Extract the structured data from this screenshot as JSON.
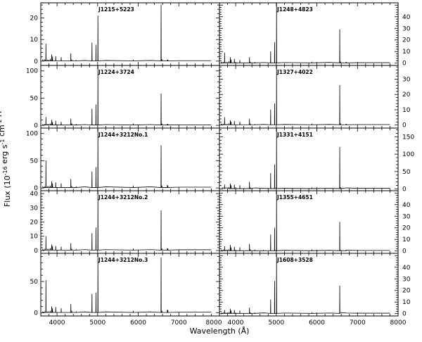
{
  "figure": {
    "xlabel": "Wavelength (Å)",
    "ylabel": "Flux (10^-16 erg s^-1 cm^-2 Å^-1)"
  },
  "chart_data": {
    "type": "line",
    "xlabel": "Wavelength (Å)",
    "ylabel": "Flux (10^-16 erg s^-1 cm^-2 Å^-1)",
    "grid": false,
    "panels": [
      {
        "name": "J1215+5223",
        "column": "left",
        "row": 0,
        "xlim": [
          3600,
          8000
        ],
        "ylim": [
          -2,
          27
        ],
        "yticks": [
          0,
          10,
          20
        ],
        "ytick_side": "left",
        "spectrum_x": [
          3650,
          3700,
          3727,
          3760,
          3800,
          3835,
          3869,
          3889,
          3968,
          4102,
          4340,
          4363,
          4471,
          4686,
          4861,
          4959,
          5007,
          5200,
          5876,
          6300,
          6563,
          6584,
          6717,
          6731,
          7000,
          7500,
          7800
        ],
        "spectrum_y": [
          0.8,
          0.7,
          8.0,
          0.6,
          0.5,
          1.0,
          3.0,
          2.0,
          2.2,
          1.8,
          3.5,
          0.6,
          0.4,
          0.3,
          8.5,
          7.5,
          21.0,
          0.3,
          0.6,
          0.3,
          26.0,
          0.8,
          0.6,
          0.5,
          0.2,
          0.2,
          0.2
        ]
      },
      {
        "name": "J1248+4823",
        "column": "right",
        "row": 0,
        "xlim": [
          3600,
          8000
        ],
        "ylim": [
          -2,
          52
        ],
        "yticks": [
          0,
          10,
          20,
          30,
          40
        ],
        "ytick_side": "right",
        "spectrum_x": [
          3650,
          3700,
          3727,
          3760,
          3800,
          3835,
          3869,
          3889,
          3968,
          4102,
          4340,
          4363,
          4471,
          4686,
          4861,
          4959,
          5007,
          5200,
          5876,
          6300,
          6563,
          6584,
          6717,
          6731,
          7000,
          7500,
          7800
        ],
        "spectrum_y": [
          1.0,
          0.9,
          9.0,
          0.8,
          0.7,
          1.5,
          5.0,
          3.0,
          3.5,
          2.5,
          5.0,
          1.0,
          0.8,
          0.5,
          10.0,
          18.0,
          53.0,
          0.5,
          1.0,
          0.6,
          29.0,
          1.2,
          0.8,
          0.7,
          0.4,
          0.4,
          0.4
        ]
      },
      {
        "name": "J1224+3724",
        "column": "left",
        "row": 1,
        "xlim": [
          3600,
          8000
        ],
        "ylim": [
          -5,
          110
        ],
        "yticks": [
          0,
          50,
          100
        ],
        "ytick_side": "left",
        "spectrum_x": [
          3650,
          3700,
          3727,
          3760,
          3800,
          3835,
          3869,
          3889,
          3968,
          4102,
          4340,
          4363,
          4471,
          4686,
          4861,
          4959,
          5007,
          5200,
          5876,
          6300,
          6563,
          6584,
          6717,
          6731,
          7000,
          7500,
          7800
        ],
        "spectrum_y": [
          2.0,
          2.0,
          15.0,
          2.0,
          2.0,
          3.0,
          10.0,
          6.0,
          8.0,
          6.0,
          12.0,
          3.0,
          2.0,
          1.5,
          30.0,
          38.0,
          110.0,
          1.5,
          3.0,
          1.5,
          58.0,
          3.0,
          2.5,
          2.0,
          1.0,
          1.0,
          1.0
        ]
      },
      {
        "name": "J1327+4022",
        "column": "right",
        "row": 1,
        "xlim": [
          3600,
          8000
        ],
        "ylim": [
          -2,
          39
        ],
        "yticks": [
          0,
          10,
          20,
          30
        ],
        "ytick_side": "right",
        "spectrum_x": [
          3650,
          3700,
          3727,
          3760,
          3800,
          3835,
          3869,
          3889,
          3968,
          4102,
          4340,
          4363,
          4471,
          4686,
          4861,
          4959,
          5007,
          5200,
          5876,
          6300,
          6563,
          6584,
          6717,
          6731,
          7000,
          7500,
          7800
        ],
        "spectrum_y": [
          0.8,
          0.7,
          5.0,
          0.6,
          0.5,
          1.0,
          3.0,
          2.0,
          2.5,
          2.0,
          4.0,
          0.8,
          0.5,
          0.4,
          10.0,
          14.0,
          40.0,
          0.4,
          0.8,
          0.4,
          26.0,
          0.9,
          0.6,
          0.5,
          0.3,
          0.3,
          0.3
        ]
      },
      {
        "name": "J1244+3212No.1",
        "column": "left",
        "row": 2,
        "xlim": [
          3600,
          8000
        ],
        "ylim": [
          -5,
          110
        ],
        "yticks": [
          0,
          50,
          100
        ],
        "ytick_side": "left",
        "spectrum_x": [
          3650,
          3700,
          3727,
          3760,
          3800,
          3835,
          3869,
          3889,
          3968,
          4102,
          4340,
          4363,
          4471,
          4686,
          4861,
          4959,
          5007,
          5200,
          5876,
          6300,
          6563,
          6584,
          6717,
          6731,
          7000,
          7500,
          7800
        ],
        "spectrum_y": [
          3.0,
          3.0,
          50.0,
          3.0,
          3.0,
          4.0,
          12.0,
          8.0,
          10.0,
          8.0,
          16.0,
          3.0,
          2.5,
          2.0,
          30.0,
          38.0,
          110.0,
          2.0,
          4.0,
          2.0,
          78.0,
          4.0,
          5.0,
          4.0,
          1.5,
          1.5,
          1.5
        ]
      },
      {
        "name": "J1331+4151",
        "column": "right",
        "row": 2,
        "xlim": [
          3600,
          8000
        ],
        "ylim": [
          -5,
          175
        ],
        "yticks": [
          0,
          50,
          100,
          150
        ],
        "ytick_side": "right",
        "spectrum_x": [
          3650,
          3700,
          3727,
          3760,
          3800,
          3835,
          3869,
          3889,
          3968,
          4102,
          4340,
          4363,
          4471,
          4686,
          4861,
          4959,
          5007,
          5200,
          5876,
          6300,
          6563,
          6584,
          6717,
          6731,
          7000,
          7500,
          7800
        ],
        "spectrum_y": [
          3.0,
          3.0,
          12.0,
          3.0,
          3.0,
          5.0,
          15.0,
          10.0,
          12.0,
          10.0,
          20.0,
          4.0,
          3.0,
          2.0,
          45.0,
          70.0,
          178.0,
          2.0,
          4.0,
          2.0,
          120.0,
          4.0,
          3.0,
          3.0,
          2.0,
          2.0,
          2.0
        ]
      },
      {
        "name": "J1244+3212No.2",
        "column": "left",
        "row": 3,
        "xlim": [
          3600,
          8000
        ],
        "ylim": [
          -2,
          42
        ],
        "yticks": [
          0,
          10,
          20,
          30,
          40
        ],
        "ytick_side": "left",
        "spectrum_x": [
          3650,
          3700,
          3727,
          3760,
          3800,
          3835,
          3869,
          3889,
          3968,
          4102,
          4340,
          4363,
          4471,
          4686,
          4861,
          4959,
          5007,
          5200,
          5876,
          6300,
          6563,
          6584,
          6717,
          6731,
          7000,
          7500,
          7800
        ],
        "spectrum_y": [
          1.0,
          1.0,
          10.0,
          1.0,
          1.0,
          1.5,
          4.0,
          3.0,
          3.0,
          2.5,
          5.0,
          1.0,
          0.8,
          0.6,
          12.0,
          16.0,
          42.0,
          0.6,
          1.2,
          0.6,
          28.0,
          1.2,
          1.5,
          1.2,
          0.5,
          0.5,
          0.5
        ]
      },
      {
        "name": "J1355+4651",
        "column": "right",
        "row": 3,
        "xlim": [
          3600,
          8000
        ],
        "ylim": [
          -2,
          52
        ],
        "yticks": [
          0,
          10,
          20,
          30,
          40
        ],
        "ytick_side": "right",
        "spectrum_x": [
          3650,
          3700,
          3727,
          3760,
          3800,
          3835,
          3869,
          3889,
          3968,
          4102,
          4340,
          4363,
          4471,
          4686,
          4861,
          4959,
          5007,
          5200,
          5876,
          6300,
          6563,
          6584,
          6717,
          6731,
          7000,
          7500,
          7800
        ],
        "spectrum_y": [
          1.0,
          1.0,
          4.0,
          1.0,
          1.0,
          1.5,
          5.0,
          3.0,
          3.5,
          3.0,
          6.0,
          1.2,
          1.0,
          0.8,
          14.0,
          20.0,
          53.0,
          0.6,
          1.2,
          0.6,
          25.0,
          0.8,
          0.8,
          0.7,
          0.5,
          0.5,
          0.5
        ]
      },
      {
        "name": "J1244+3212No.3",
        "column": "left",
        "row": 4,
        "xlim": [
          3600,
          8000
        ],
        "ylim": [
          -5,
          95
        ],
        "yticks": [
          0,
          50
        ],
        "ytick_side": "left",
        "spectrum_x": [
          3650,
          3700,
          3727,
          3760,
          3800,
          3835,
          3869,
          3889,
          3968,
          4102,
          4340,
          4363,
          4471,
          4686,
          4861,
          4959,
          5007,
          5200,
          5876,
          6300,
          6563,
          6584,
          6717,
          6731,
          7000,
          7500,
          7800
        ],
        "spectrum_y": [
          2.0,
          2.0,
          52.0,
          2.0,
          2.0,
          3.0,
          10.0,
          7.0,
          9.0,
          7.0,
          14.0,
          3.0,
          2.0,
          1.5,
          30.0,
          32.0,
          95.0,
          1.5,
          3.0,
          1.5,
          88.0,
          3.0,
          5.0,
          4.0,
          1.0,
          1.0,
          1.0
        ]
      },
      {
        "name": "J1608+3528",
        "column": "right",
        "row": 4,
        "xlim": [
          3600,
          8000
        ],
        "ylim": [
          -2,
          52
        ],
        "yticks": [
          0,
          10,
          20,
          30,
          40
        ],
        "ytick_side": "right",
        "spectrum_x": [
          3650,
          3700,
          3727,
          3760,
          3800,
          3835,
          3869,
          3889,
          3968,
          4102,
          4340,
          4363,
          4471,
          4686,
          4861,
          4959,
          5007,
          5200,
          5876,
          6300,
          6563,
          6584,
          6717,
          6731,
          7000,
          7500,
          7800
        ],
        "spectrum_y": [
          0.8,
          0.8,
          3.0,
          0.8,
          0.8,
          1.2,
          4.0,
          2.5,
          3.0,
          2.5,
          5.0,
          1.0,
          0.8,
          0.6,
          12.0,
          28.0,
          54.0,
          0.5,
          1.0,
          0.5,
          24.0,
          0.6,
          0.6,
          0.5,
          0.4,
          0.4,
          0.4
        ]
      }
    ],
    "x_ticks_labeled": [
      4000,
      5000,
      6000,
      7000,
      8000
    ],
    "x_minor_step": 200
  }
}
